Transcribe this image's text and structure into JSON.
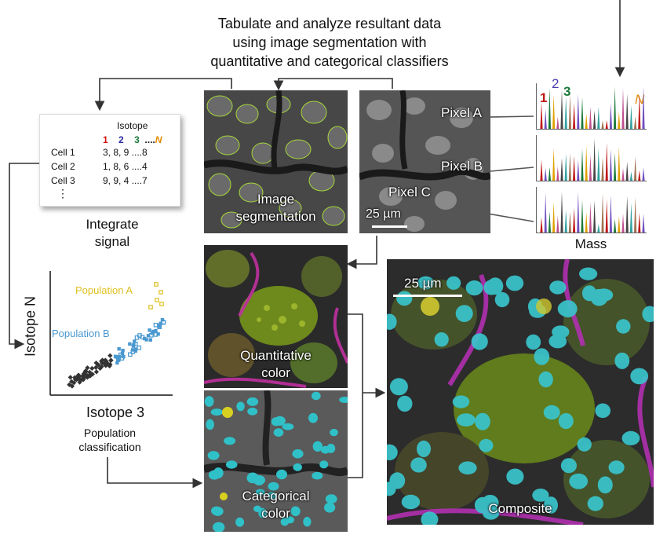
{
  "header": {
    "line1": "Tabulate and analyze resultant data",
    "line2": "using image segmentation with",
    "line3": "quantitative and categorical classifiers"
  },
  "table": {
    "title": "Isotope",
    "cols": [
      "1",
      "2",
      "3",
      "....",
      "N"
    ],
    "col_colors": [
      "#d01010",
      "#2a2aa0",
      "#1a7a3a",
      "#111111",
      "#e08a00"
    ],
    "rows": [
      {
        "label": "Cell 1",
        "values": "3,  8,  9 ....8"
      },
      {
        "label": "Cell 2",
        "values": "1,  8,  6 ....4"
      },
      {
        "label": "Cell 3",
        "values": "9,  9,  4 ....7"
      }
    ],
    "more": "⋮"
  },
  "labels": {
    "integrate_1": "Integrate",
    "integrate_2": "signal",
    "segmentation_1": "Image",
    "segmentation_2": "segmentation",
    "pixel_a": "Pixel A",
    "pixel_b": "Pixel B",
    "pixel_c": "Pixel C",
    "scale_bar": "25 µm",
    "scale_bar_composite": "25 µm",
    "mass": "Mass",
    "quant_1": "Quantitative",
    "quant_2": "color",
    "cat_1": "Categorical",
    "cat_2": "color",
    "composite": "Composite",
    "pop_class_1": "Population",
    "pop_class_2": "classification",
    "spectrum_peak_1": "1",
    "spectrum_peak_2": "2",
    "spectrum_peak_3": "3",
    "spectrum_peak_n": "N"
  },
  "scatter": {
    "ylabel": "Isotope N",
    "xlabel": "Isotope 3",
    "population_a": "Population A",
    "population_b": "Population B",
    "pop_a_color": "#e0c020",
    "pop_b_color": "#4a98d0"
  },
  "colors": {
    "peak_colors": [
      "#c01818",
      "#7050c0",
      "#1a7a3a",
      "#e0a000",
      "#c05090",
      "#444444",
      "#30a0a0",
      "#a07050"
    ]
  }
}
